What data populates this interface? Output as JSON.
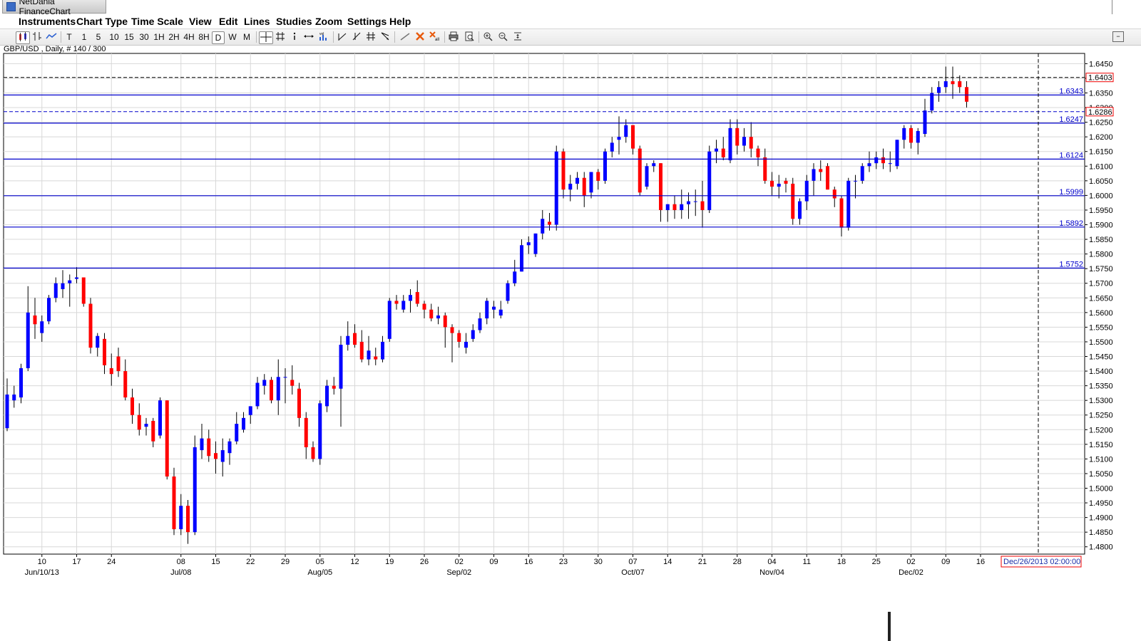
{
  "window": {
    "title": "NetDania FinanceChart"
  },
  "menu": [
    "Instruments",
    "Chart Type",
    "Time Scale",
    "View",
    "Edit",
    "Lines",
    "Studies",
    "Zoom",
    "Settings",
    "Help"
  ],
  "toolbar": {
    "timescales": [
      "T",
      "1",
      "5",
      "10",
      "15",
      "30",
      "1H",
      "2H",
      "4H",
      "8H",
      "D",
      "W",
      "M"
    ],
    "selected_timescale": "D",
    "icons": [
      "candles-icon",
      "ohlc-bars-icon",
      "line-chart-icon",
      "crosshair-icon",
      "grid-icon",
      "info-icon",
      "pan-icon",
      "volume-icon",
      "trendline-icon",
      "trendline-up-icon",
      "parallel-lines-icon",
      "fib-fan-icon",
      "draw-line-icon",
      "delete-icon",
      "delete-all-icon",
      "print-icon",
      "preview-icon",
      "zoom-in-icon",
      "zoom-out-icon",
      "fit-icon",
      "collapse-icon"
    ]
  },
  "chart_data": {
    "type": "candlestick",
    "title": "GBP/USD , Daily, # 140 / 300",
    "ylim": [
      1.4775,
      1.6485
    ],
    "yticks": [
      "1.6450",
      "1.6400",
      "1.6350",
      "1.6300",
      "1.6250",
      "1.6200",
      "1.6150",
      "1.6100",
      "1.6050",
      "1.6000",
      "1.5950",
      "1.5900",
      "1.5850",
      "1.5800",
      "1.5750",
      "1.5700",
      "1.5650",
      "1.5600",
      "1.5550",
      "1.5500",
      "1.5450",
      "1.5400",
      "1.5350",
      "1.5300",
      "1.5250",
      "1.5200",
      "1.5150",
      "1.5100",
      "1.5050",
      "1.5000",
      "1.4950",
      "1.4900",
      "1.4850",
      "1.4800"
    ],
    "xticks": [
      {
        "day": "10",
        "month": "Jun/10/13",
        "index": 5
      },
      {
        "day": "17",
        "index": 10
      },
      {
        "day": "24",
        "index": 15
      },
      {
        "day": "08",
        "month": "Jul/08",
        "index": 25
      },
      {
        "day": "15",
        "index": 30
      },
      {
        "day": "22",
        "index": 35
      },
      {
        "day": "29",
        "index": 40
      },
      {
        "day": "05",
        "month": "Aug/05",
        "index": 45
      },
      {
        "day": "12",
        "index": 50
      },
      {
        "day": "19",
        "index": 55
      },
      {
        "day": "26",
        "index": 60
      },
      {
        "day": "02",
        "month": "Sep/02",
        "index": 65
      },
      {
        "day": "09",
        "index": 70
      },
      {
        "day": "16",
        "index": 75
      },
      {
        "day": "23",
        "index": 80
      },
      {
        "day": "30",
        "index": 85
      },
      {
        "day": "07",
        "month": "Oct/07",
        "index": 90
      },
      {
        "day": "14",
        "index": 95
      },
      {
        "day": "21",
        "index": 100
      },
      {
        "day": "28",
        "index": 105
      },
      {
        "day": "04",
        "month": "Nov/04",
        "index": 110
      },
      {
        "day": "11",
        "index": 115
      },
      {
        "day": "18",
        "index": 120
      },
      {
        "day": "25",
        "index": 125
      },
      {
        "day": "02",
        "month": "Dec/02",
        "index": 130
      },
      {
        "day": "09",
        "index": 135
      },
      {
        "day": "16",
        "index": 140
      }
    ],
    "levels": [
      {
        "label": "1.6343",
        "value": 1.6343
      },
      {
        "label": "1.6247",
        "value": 1.6247
      },
      {
        "label": "1.6124",
        "value": 1.6124
      },
      {
        "label": "1.5999",
        "value": 1.5999
      },
      {
        "label": "1.5892",
        "value": 1.5892
      },
      {
        "label": "1.5752",
        "value": 1.5752
      }
    ],
    "price_markers": [
      {
        "label": "1.6403",
        "value": 1.6403,
        "style": "dashed-black"
      },
      {
        "label": "1.6286",
        "value": 1.6286,
        "style": "dashed-blue"
      }
    ],
    "cursor_time": "Dec/26/2013 02:00:00",
    "colors": {
      "up": "#0000ff",
      "down": "#ff0000",
      "level": "#0000cc",
      "grid": "#d8d8d8"
    },
    "candles": [
      [
        1.5205,
        1.5375,
        1.5195,
        1.532
      ],
      [
        1.53,
        1.535,
        1.5275,
        1.532
      ],
      [
        1.531,
        1.5425,
        1.529,
        1.541
      ],
      [
        1.541,
        1.569,
        1.54,
        1.56
      ],
      [
        1.559,
        1.565,
        1.551,
        1.556
      ],
      [
        1.553,
        1.559,
        1.55,
        1.557
      ],
      [
        1.557,
        1.566,
        1.556,
        1.565
      ],
      [
        1.565,
        1.572,
        1.5635,
        1.57
      ],
      [
        1.568,
        1.5745,
        1.565,
        1.57
      ],
      [
        1.57,
        1.573,
        1.562,
        1.571
      ],
      [
        1.5715,
        1.5755,
        1.57,
        1.572
      ],
      [
        1.572,
        1.572,
        1.562,
        1.563
      ],
      [
        1.563,
        1.565,
        1.546,
        1.548
      ],
      [
        1.548,
        1.553,
        1.545,
        1.552
      ],
      [
        1.551,
        1.553,
        1.539,
        1.542
      ],
      [
        1.541,
        1.546,
        1.535,
        1.539
      ],
      [
        1.545,
        1.548,
        1.538,
        1.54
      ],
      [
        1.54,
        1.544,
        1.53,
        1.531
      ],
      [
        1.531,
        1.534,
        1.522,
        1.525
      ],
      [
        1.525,
        1.529,
        1.518,
        1.52
      ],
      [
        1.521,
        1.524,
        1.518,
        1.522
      ],
      [
        1.523,
        1.524,
        1.514,
        1.516
      ],
      [
        1.518,
        1.531,
        1.517,
        1.53
      ],
      [
        1.53,
        1.53,
        1.503,
        1.504
      ],
      [
        1.504,
        1.507,
        1.484,
        1.486
      ],
      [
        1.486,
        1.498,
        1.484,
        1.494
      ],
      [
        1.494,
        1.496,
        1.481,
        1.485
      ],
      [
        1.485,
        1.518,
        1.484,
        1.514
      ],
      [
        1.513,
        1.522,
        1.51,
        1.517
      ],
      [
        1.517,
        1.52,
        1.509,
        1.511
      ],
      [
        1.512,
        1.516,
        1.505,
        1.51
      ],
      [
        1.509,
        1.517,
        1.504,
        1.513
      ],
      [
        1.512,
        1.517,
        1.508,
        1.516
      ],
      [
        1.516,
        1.526,
        1.515,
        1.522
      ],
      [
        1.52,
        1.526,
        1.519,
        1.524
      ],
      [
        1.525,
        1.528,
        1.522,
        1.528
      ],
      [
        1.528,
        1.538,
        1.527,
        1.536
      ],
      [
        1.535,
        1.539,
        1.532,
        1.537
      ],
      [
        1.537,
        1.538,
        1.529,
        1.53
      ],
      [
        1.53,
        1.544,
        1.525,
        1.538
      ],
      [
        1.538,
        1.541,
        1.529,
        1.538
      ],
      [
        1.537,
        1.542,
        1.532,
        1.535
      ],
      [
        1.534,
        1.536,
        1.521,
        1.524
      ],
      [
        1.524,
        1.526,
        1.51,
        1.514
      ],
      [
        1.514,
        1.516,
        1.509,
        1.51
      ],
      [
        1.51,
        1.53,
        1.508,
        1.529
      ],
      [
        1.528,
        1.537,
        1.526,
        1.535
      ],
      [
        1.535,
        1.538,
        1.532,
        1.534
      ],
      [
        1.534,
        1.552,
        1.521,
        1.549
      ],
      [
        1.549,
        1.557,
        1.547,
        1.552
      ],
      [
        1.553,
        1.556,
        1.548,
        1.549
      ],
      [
        1.55,
        1.554,
        1.543,
        1.544
      ],
      [
        1.544,
        1.552,
        1.542,
        1.547
      ],
      [
        1.545,
        1.548,
        1.542,
        1.544
      ],
      [
        1.544,
        1.552,
        1.543,
        1.55
      ],
      [
        1.551,
        1.565,
        1.55,
        1.564
      ],
      [
        1.564,
        1.566,
        1.561,
        1.563
      ],
      [
        1.561,
        1.566,
        1.56,
        1.564
      ],
      [
        1.564,
        1.568,
        1.56,
        1.566
      ],
      [
        1.567,
        1.571,
        1.562,
        1.563
      ],
      [
        1.563,
        1.564,
        1.558,
        1.561
      ],
      [
        1.561,
        1.563,
        1.557,
        1.558
      ],
      [
        1.558,
        1.562,
        1.556,
        1.559
      ],
      [
        1.559,
        1.56,
        1.548,
        1.555
      ],
      [
        1.555,
        1.556,
        1.543,
        1.553
      ],
      [
        1.553,
        1.554,
        1.548,
        1.55
      ],
      [
        1.548,
        1.553,
        1.546,
        1.55
      ],
      [
        1.551,
        1.556,
        1.55,
        1.554
      ],
      [
        1.554,
        1.56,
        1.553,
        1.558
      ],
      [
        1.558,
        1.565,
        1.556,
        1.564
      ],
      [
        1.561,
        1.564,
        1.558,
        1.562
      ],
      [
        1.559,
        1.564,
        1.558,
        1.561
      ],
      [
        1.564,
        1.571,
        1.563,
        1.57
      ],
      [
        1.57,
        1.578,
        1.569,
        1.574
      ],
      [
        1.574,
        1.585,
        1.574,
        1.583
      ],
      [
        1.583,
        1.586,
        1.58,
        1.584
      ],
      [
        1.58,
        1.587,
        1.579,
        1.587
      ],
      [
        1.587,
        1.595,
        1.585,
        1.592
      ],
      [
        1.591,
        1.594,
        1.588,
        1.59
      ],
      [
        1.59,
        1.617,
        1.588,
        1.615
      ],
      [
        1.615,
        1.616,
        1.599,
        1.602
      ],
      [
        1.602,
        1.607,
        1.598,
        1.604
      ],
      [
        1.604,
        1.608,
        1.602,
        1.606
      ],
      [
        1.606,
        1.608,
        1.596,
        1.6
      ],
      [
        1.601,
        1.608,
        1.599,
        1.608
      ],
      [
        1.608,
        1.609,
        1.602,
        1.605
      ],
      [
        1.605,
        1.616,
        1.604,
        1.615
      ],
      [
        1.615,
        1.62,
        1.613,
        1.618
      ],
      [
        1.619,
        1.627,
        1.614,
        1.62
      ],
      [
        1.62,
        1.626,
        1.618,
        1.624
      ],
      [
        1.624,
        1.624,
        1.614,
        1.616
      ],
      [
        1.616,
        1.617,
        1.6,
        1.601
      ],
      [
        1.603,
        1.611,
        1.602,
        1.61
      ],
      [
        1.61,
        1.612,
        1.608,
        1.611
      ],
      [
        1.611,
        1.611,
        1.591,
        1.595
      ],
      [
        1.595,
        1.597,
        1.591,
        1.597
      ],
      [
        1.597,
        1.6,
        1.592,
        1.595
      ],
      [
        1.595,
        1.602,
        1.592,
        1.597
      ],
      [
        1.597,
        1.601,
        1.592,
        1.598
      ],
      [
        1.598,
        1.602,
        1.593,
        1.598
      ],
      [
        1.598,
        1.605,
        1.589,
        1.595
      ],
      [
        1.595,
        1.617,
        1.594,
        1.615
      ],
      [
        1.615,
        1.619,
        1.611,
        1.616
      ],
      [
        1.616,
        1.62,
        1.612,
        1.613
      ],
      [
        1.612,
        1.626,
        1.611,
        1.623
      ],
      [
        1.623,
        1.626,
        1.614,
        1.617
      ],
      [
        1.617,
        1.623,
        1.615,
        1.62
      ],
      [
        1.62,
        1.625,
        1.613,
        1.616
      ],
      [
        1.616,
        1.617,
        1.61,
        1.613
      ],
      [
        1.613,
        1.616,
        1.604,
        1.605
      ],
      [
        1.605,
        1.608,
        1.6,
        1.603
      ],
      [
        1.603,
        1.607,
        1.599,
        1.604
      ],
      [
        1.605,
        1.606,
        1.601,
        1.604
      ],
      [
        1.604,
        1.606,
        1.59,
        1.592
      ],
      [
        1.592,
        1.599,
        1.59,
        1.598
      ],
      [
        1.598,
        1.607,
        1.595,
        1.605
      ],
      [
        1.605,
        1.611,
        1.6,
        1.609
      ],
      [
        1.609,
        1.612,
        1.605,
        1.608
      ],
      [
        1.61,
        1.611,
        1.602,
        1.602
      ],
      [
        1.602,
        1.603,
        1.596,
        1.599
      ],
      [
        1.599,
        1.6,
        1.586,
        1.589
      ],
      [
        1.589,
        1.606,
        1.588,
        1.605
      ],
      [
        1.605,
        1.607,
        1.599,
        1.605
      ],
      [
        1.605,
        1.611,
        1.604,
        1.61
      ],
      [
        1.61,
        1.615,
        1.608,
        1.611
      ],
      [
        1.611,
        1.615,
        1.609,
        1.613
      ],
      [
        1.613,
        1.616,
        1.609,
        1.611
      ],
      [
        1.611,
        1.615,
        1.608,
        1.611
      ],
      [
        1.61,
        1.619,
        1.609,
        1.619
      ],
      [
        1.619,
        1.624,
        1.616,
        1.623
      ],
      [
        1.623,
        1.624,
        1.616,
        1.618
      ],
      [
        1.618,
        1.623,
        1.614,
        1.622
      ],
      [
        1.621,
        1.633,
        1.62,
        1.629
      ],
      [
        1.629,
        1.637,
        1.628,
        1.635
      ],
      [
        1.635,
        1.639,
        1.632,
        1.637
      ],
      [
        1.637,
        1.644,
        1.635,
        1.639
      ],
      [
        1.639,
        1.644,
        1.633,
        1.638
      ],
      [
        1.639,
        1.641,
        1.635,
        1.637
      ],
      [
        1.637,
        1.639,
        1.63,
        1.632
      ]
    ]
  }
}
